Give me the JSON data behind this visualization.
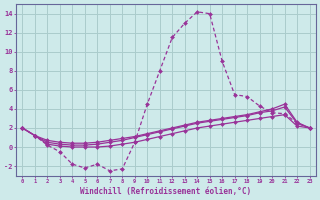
{
  "xlabel": "Windchill (Refroidissement éolien,°C)",
  "background_color": "#ceeaea",
  "grid_color": "#aacccc",
  "line_color": "#993399",
  "x": [
    0,
    1,
    2,
    3,
    4,
    5,
    6,
    7,
    8,
    9,
    10,
    11,
    12,
    13,
    14,
    15,
    16,
    17,
    18,
    19,
    20,
    21,
    22,
    23
  ],
  "y_main": [
    2.0,
    1.2,
    0.2,
    -0.5,
    -1.8,
    -2.2,
    -1.8,
    -2.5,
    -2.3,
    0.5,
    4.5,
    8.0,
    11.5,
    13.0,
    14.2,
    14.0,
    9.0,
    5.5,
    5.3,
    4.3,
    3.6,
    3.5,
    2.5,
    2.0
  ],
  "y_line2": [
    2.0,
    1.2,
    0.3,
    0.1,
    0.0,
    0.0,
    0.0,
    0.1,
    0.3,
    0.5,
    0.8,
    1.1,
    1.4,
    1.7,
    2.0,
    2.2,
    2.4,
    2.6,
    2.8,
    3.0,
    3.2,
    3.4,
    2.2,
    2.0
  ],
  "y_line3": [
    2.0,
    1.2,
    0.5,
    0.3,
    0.2,
    0.2,
    0.3,
    0.5,
    0.7,
    1.0,
    1.3,
    1.6,
    1.9,
    2.2,
    2.5,
    2.7,
    2.9,
    3.1,
    3.3,
    3.6,
    3.8,
    4.2,
    2.5,
    2.0
  ],
  "y_line4": [
    2.0,
    1.2,
    0.7,
    0.5,
    0.4,
    0.4,
    0.5,
    0.7,
    0.9,
    1.1,
    1.4,
    1.7,
    2.0,
    2.3,
    2.6,
    2.8,
    3.0,
    3.2,
    3.4,
    3.7,
    4.0,
    4.5,
    2.6,
    2.0
  ],
  "ylim": [
    -3,
    15
  ],
  "xlim": [
    -0.5,
    23.5
  ],
  "yticks": [
    -2,
    0,
    2,
    4,
    6,
    8,
    10,
    12,
    14
  ],
  "xticks": [
    0,
    1,
    2,
    3,
    4,
    5,
    6,
    7,
    8,
    9,
    10,
    11,
    12,
    13,
    14,
    15,
    16,
    17,
    18,
    19,
    20,
    21,
    22,
    23
  ]
}
